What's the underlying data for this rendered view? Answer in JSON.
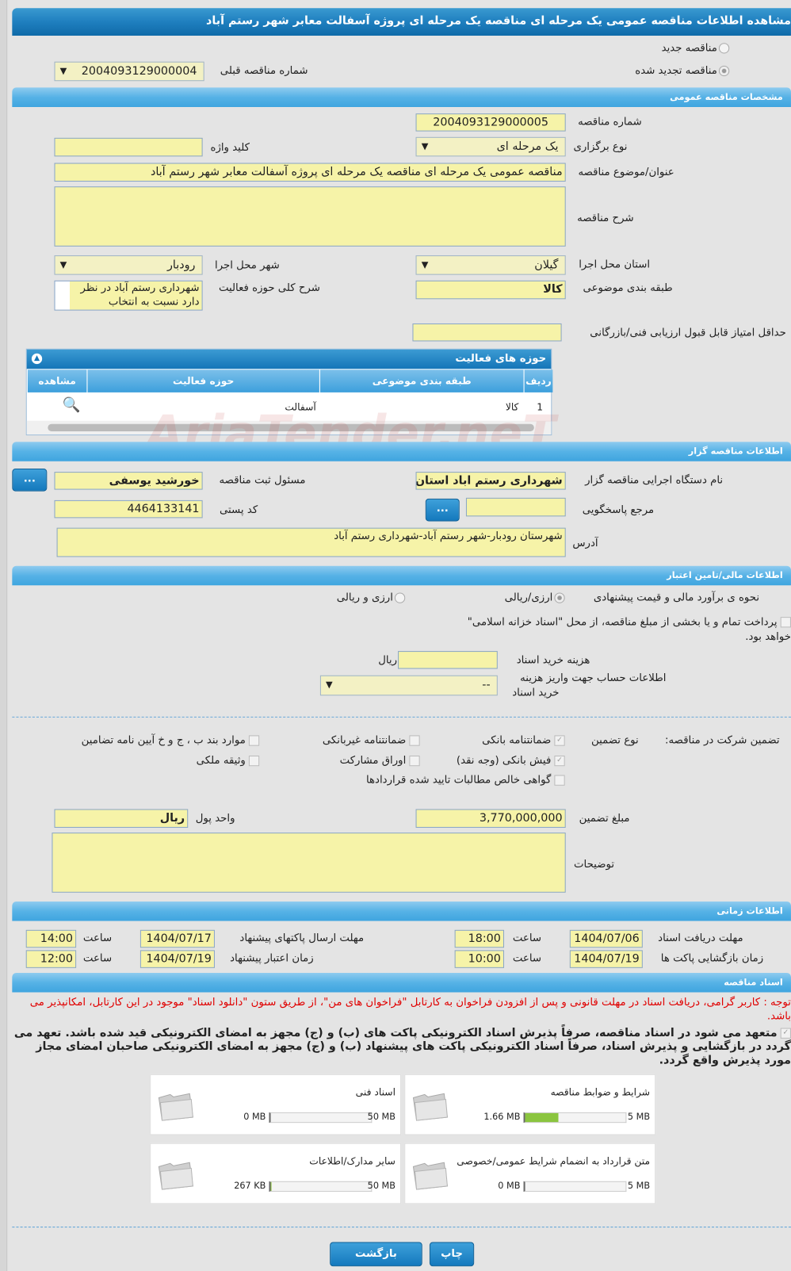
{
  "title": "مشاهده اطلاعات مناقصه عمومی یک مرحله ای مناقصه یک مرحله ای پروژه آسفالت معابر شهر رستم آباد",
  "watermark": "AriaTender.neT",
  "top": {
    "radio_new": "مناقصه جدید",
    "radio_renewed": "مناقصه تجدید شده",
    "prev_label": "شماره مناقصه قبلی",
    "prev_value": "2004093129000004"
  },
  "general": {
    "header": "مشخصات مناقصه عمومی",
    "number_label": "شماره مناقصه",
    "number_value": "2004093129000005",
    "type_label": "نوع برگزاری",
    "type_value": "یک مرحله ای",
    "keyword_label": "کلید واژه",
    "keyword_value": "",
    "subject_label": "عنوان/موضوع مناقصه",
    "subject_value": "مناقصه عمومی یک مرحله ای مناقصه یک مرحله ای پروژه آسفالت معابر شهر رستم آباد",
    "desc_label": "شرح مناقصه",
    "desc_value": "",
    "province_label": "استان محل اجرا",
    "province_value": "گیلان",
    "city_label": "شهر محل اجرا",
    "city_value": "رودبار",
    "category_label": "طبقه بندی موضوعی",
    "category_value": "کالا",
    "scope_label": "شرح کلی حوزه فعالیت",
    "scope_value": "شهرداری رستم آباد در نظر دارد نسبت به انتخاب",
    "minscore_label": "حداقل امتیاز قابل قبول ارزیابی فنی/بازرگانی",
    "minscore_value": ""
  },
  "grid": {
    "title": "حوزه های فعالیت",
    "columns": [
      "ردیف",
      "طبقه بندی موضوعی",
      "حوزه فعالیت",
      "مشاهده"
    ],
    "rows": [
      {
        "row": "1",
        "category": "کالا",
        "field": "آسفالت"
      }
    ]
  },
  "organizer": {
    "header": "اطلاعات مناقصه گزار",
    "org_label": "نام دستگاه اجرایی مناقصه گزار",
    "org_value": "شهرداری رستم اباد استان",
    "resp_label": "مسئول ثبت مناقصه",
    "resp_value": "خورشید یوسفی",
    "ref_label": "مرجع پاسخگویی",
    "ref_value": "",
    "postal_label": "کد پستی",
    "postal_value": "4464133141",
    "address_label": "آدرس",
    "address_value": "شهرستان رودبار-شهر رستم آباد-شهرداری رستم آباد",
    "dots": "..."
  },
  "finance": {
    "header": "اطلاعات مالی/تامین اعتبار",
    "method_label": "نحوه ی برآورد مالی و قیمت پیشنهادی",
    "opt1": "ارزی/ریالی",
    "opt2": "ارزی و ریالی",
    "treasury_line1": "پرداخت تمام و یا بخشی از مبلغ مناقصه، از محل \"اسناد خزانه اسلامی\"",
    "treasury_line2": "خواهد بود.",
    "doccost_label": "هزینه خرید اسناد",
    "doccost_value": "",
    "rial": "ریال",
    "account_label_1": "اطلاعات حساب جهت واریز هزینه",
    "account_label_2": "خرید اسناد",
    "account_value": "--"
  },
  "guarantee": {
    "label": "تضمین شرکت در مناقصه:",
    "type_label": "نوع تضمین",
    "items": [
      {
        "label": "ضمانتنامه بانکی",
        "checked": true
      },
      {
        "label": "ضمانتنامه غیربانکی",
        "checked": false
      },
      {
        "label": "موارد بند ب ، ج و خ آیین نامه تضامین",
        "checked": false
      },
      {
        "label": "فیش بانکی (وجه نقد)",
        "checked": true
      },
      {
        "label": "اوراق مشارکت",
        "checked": false
      },
      {
        "label": "وثیقه ملکی",
        "checked": false
      },
      {
        "label": "گواهی خالص مطالبات تایید شده قراردادها",
        "checked": false
      }
    ],
    "amount_label": "مبلغ تضمین",
    "amount_value": "3,770,000,000",
    "currency_label": "واحد پول",
    "currency_value": "ریال",
    "notes_label": "توضیحات",
    "notes_value": ""
  },
  "timing": {
    "header": "اطلاعات زمانی",
    "time_label": "ساعت",
    "doc_label": "مهلت دریافت اسناد",
    "doc_date": "1404/07/06",
    "doc_time": "18:00",
    "send_label": "مهلت ارسال پاکتهای پیشنهاد",
    "send_date": "1404/07/17",
    "send_time": "14:00",
    "open_label": "زمان بازگشایی پاکت ها",
    "open_date": "1404/07/19",
    "open_time": "10:00",
    "valid_label": "زمان اعتبار پیشنهاد",
    "valid_date": "1404/07/19",
    "valid_time": "12:00"
  },
  "docs": {
    "header": "اسناد مناقصه",
    "notice": "توجه : کاربر گرامی، دریافت اسناد در مهلت قانونی و پس از افزودن فراخوان به کارتابل \"فراخوان های من\"، از طریق ستون \"دانلود اسناد\" موجود در این کارتابل، امکانپذیر می باشد.",
    "commit": "متعهد می شود در اسناد مناقصه، صرفاً پذیرش اسناد الکترونیکی پاکت های (ب) و (ج) مجهز به امضای الکترونیکی قید شده باشد. تعهد می گردد در بازگشایی و پذیرش اسناد، صرفاً اسناد الکترونیکی پاکت های پیشنهاد (ب) و (ج) مجهز به امضای الکترونیکی صاحبان امضای مجاز مورد پذیرش واقع گردد.",
    "files": [
      {
        "title": "شرایط و ضوابط مناقصه",
        "size": "1.66 MB",
        "max": "5 MB",
        "fill": 0.33
      },
      {
        "title": "اسناد فنی",
        "size": "0 MB",
        "max": "50 MB",
        "fill": 0
      },
      {
        "title": "متن قرارداد به انضمام شرایط عمومی/خصوصی",
        "size": "0 MB",
        "max": "5 MB",
        "fill": 0
      },
      {
        "title": "سایر مدارک/اطلاعات",
        "size": "267 KB",
        "max": "50 MB",
        "fill": 0.005
      }
    ]
  },
  "buttons": {
    "back": "بازگشت",
    "print": "چاپ"
  },
  "colors": {
    "header": "#1f7fbf",
    "section": "#56b2e6",
    "input": "#f6f3a8",
    "notice": "#e00000",
    "progress": "#8bc53f"
  }
}
